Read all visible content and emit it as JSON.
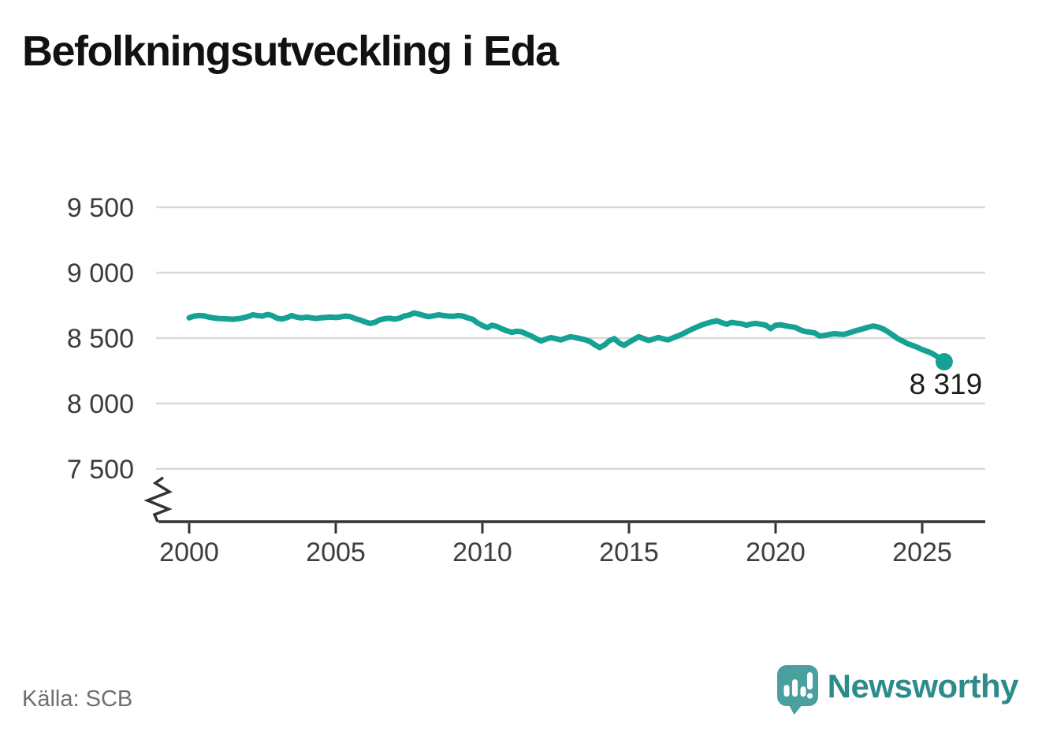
{
  "title": "Befolkningsutveckling i Eda",
  "source": "Källa: SCB",
  "branding": {
    "name": "Newsworthy",
    "icon": "newsworthy-speech-bubble-chart-icon",
    "wordmark_color": "#2d8c8a",
    "bubble_color": "#4aa09e"
  },
  "chart_data": {
    "type": "line",
    "title": "Befolkningsutveckling i Eda",
    "xlabel": "",
    "ylabel": "",
    "line_color": "#15a294",
    "grid_color": "#d9d9d9",
    "axis_color": "#333333",
    "tick_label_color": "#3d3d3d",
    "x_ticks": [
      2000,
      2005,
      2010,
      2015,
      2020,
      2025
    ],
    "y_ticks": [
      {
        "value": 9500,
        "label": "9 500"
      },
      {
        "value": 9000,
        "label": "9 000"
      },
      {
        "value": 8500,
        "label": "8 500"
      },
      {
        "value": 8000,
        "label": "8 000"
      },
      {
        "value": 7500,
        "label": "7 500"
      }
    ],
    "xlim": [
      1998.9,
      2027.2
    ],
    "ylim": [
      7500,
      9500
    ],
    "axis_break": true,
    "grid": true,
    "legend": "none",
    "end_label": "8 319",
    "end_value": 8319,
    "series": [
      {
        "name": "Befolkning i Eda",
        "points": [
          [
            2000.0,
            8655
          ],
          [
            2000.17,
            8668
          ],
          [
            2000.33,
            8672
          ],
          [
            2000.5,
            8670
          ],
          [
            2000.67,
            8660
          ],
          [
            2000.83,
            8654
          ],
          [
            2001.0,
            8650
          ],
          [
            2001.17,
            8648
          ],
          [
            2001.33,
            8646
          ],
          [
            2001.5,
            8644
          ],
          [
            2001.67,
            8648
          ],
          [
            2001.83,
            8654
          ],
          [
            2002.0,
            8664
          ],
          [
            2002.17,
            8678
          ],
          [
            2002.33,
            8672
          ],
          [
            2002.5,
            8668
          ],
          [
            2002.67,
            8680
          ],
          [
            2002.83,
            8672
          ],
          [
            2003.0,
            8652
          ],
          [
            2003.17,
            8646
          ],
          [
            2003.33,
            8656
          ],
          [
            2003.5,
            8672
          ],
          [
            2003.67,
            8660
          ],
          [
            2003.83,
            8654
          ],
          [
            2004.0,
            8660
          ],
          [
            2004.17,
            8655
          ],
          [
            2004.33,
            8650
          ],
          [
            2004.5,
            8655
          ],
          [
            2004.67,
            8658
          ],
          [
            2004.83,
            8660
          ],
          [
            2005.0,
            8657
          ],
          [
            2005.17,
            8662
          ],
          [
            2005.33,
            8668
          ],
          [
            2005.5,
            8664
          ],
          [
            2005.67,
            8648
          ],
          [
            2005.83,
            8638
          ],
          [
            2006.0,
            8624
          ],
          [
            2006.17,
            8612
          ],
          [
            2006.33,
            8620
          ],
          [
            2006.5,
            8640
          ],
          [
            2006.67,
            8648
          ],
          [
            2006.83,
            8652
          ],
          [
            2007.0,
            8645
          ],
          [
            2007.17,
            8652
          ],
          [
            2007.33,
            8668
          ],
          [
            2007.5,
            8676
          ],
          [
            2007.67,
            8692
          ],
          [
            2007.83,
            8684
          ],
          [
            2008.0,
            8672
          ],
          [
            2008.17,
            8664
          ],
          [
            2008.33,
            8670
          ],
          [
            2008.5,
            8678
          ],
          [
            2008.67,
            8672
          ],
          [
            2008.83,
            8668
          ],
          [
            2009.0,
            8666
          ],
          [
            2009.17,
            8672
          ],
          [
            2009.33,
            8668
          ],
          [
            2009.5,
            8654
          ],
          [
            2009.67,
            8644
          ],
          [
            2009.83,
            8616
          ],
          [
            2010.0,
            8596
          ],
          [
            2010.17,
            8580
          ],
          [
            2010.33,
            8598
          ],
          [
            2010.5,
            8588
          ],
          [
            2010.67,
            8570
          ],
          [
            2010.83,
            8556
          ],
          [
            2011.0,
            8544
          ],
          [
            2011.17,
            8552
          ],
          [
            2011.33,
            8548
          ],
          [
            2011.5,
            8532
          ],
          [
            2011.67,
            8516
          ],
          [
            2011.83,
            8496
          ],
          [
            2012.0,
            8478
          ],
          [
            2012.17,
            8492
          ],
          [
            2012.33,
            8503
          ],
          [
            2012.5,
            8496
          ],
          [
            2012.67,
            8486
          ],
          [
            2012.83,
            8498
          ],
          [
            2013.0,
            8510
          ],
          [
            2013.17,
            8504
          ],
          [
            2013.33,
            8496
          ],
          [
            2013.5,
            8488
          ],
          [
            2013.67,
            8474
          ],
          [
            2013.83,
            8450
          ],
          [
            2014.0,
            8428
          ],
          [
            2014.17,
            8448
          ],
          [
            2014.33,
            8480
          ],
          [
            2014.5,
            8496
          ],
          [
            2014.67,
            8462
          ],
          [
            2014.83,
            8444
          ],
          [
            2015.0,
            8468
          ],
          [
            2015.17,
            8490
          ],
          [
            2015.33,
            8510
          ],
          [
            2015.5,
            8496
          ],
          [
            2015.67,
            8482
          ],
          [
            2015.83,
            8492
          ],
          [
            2016.0,
            8504
          ],
          [
            2016.17,
            8494
          ],
          [
            2016.33,
            8486
          ],
          [
            2016.5,
            8502
          ],
          [
            2016.67,
            8516
          ],
          [
            2016.83,
            8532
          ],
          [
            2017.0,
            8552
          ],
          [
            2017.17,
            8570
          ],
          [
            2017.33,
            8586
          ],
          [
            2017.5,
            8602
          ],
          [
            2017.67,
            8614
          ],
          [
            2017.83,
            8624
          ],
          [
            2018.0,
            8632
          ],
          [
            2018.17,
            8618
          ],
          [
            2018.33,
            8606
          ],
          [
            2018.5,
            8620
          ],
          [
            2018.67,
            8614
          ],
          [
            2018.83,
            8610
          ],
          [
            2019.0,
            8598
          ],
          [
            2019.17,
            8608
          ],
          [
            2019.33,
            8612
          ],
          [
            2019.5,
            8606
          ],
          [
            2019.67,
            8598
          ],
          [
            2019.83,
            8572
          ],
          [
            2020.0,
            8598
          ],
          [
            2020.17,
            8602
          ],
          [
            2020.33,
            8594
          ],
          [
            2020.5,
            8588
          ],
          [
            2020.67,
            8582
          ],
          [
            2020.83,
            8564
          ],
          [
            2021.0,
            8550
          ],
          [
            2021.17,
            8546
          ],
          [
            2021.33,
            8540
          ],
          [
            2021.5,
            8516
          ],
          [
            2021.67,
            8520
          ],
          [
            2021.83,
            8528
          ],
          [
            2022.0,
            8534
          ],
          [
            2022.17,
            8530
          ],
          [
            2022.33,
            8528
          ],
          [
            2022.5,
            8540
          ],
          [
            2022.67,
            8552
          ],
          [
            2022.83,
            8562
          ],
          [
            2023.0,
            8572
          ],
          [
            2023.17,
            8584
          ],
          [
            2023.33,
            8592
          ],
          [
            2023.5,
            8584
          ],
          [
            2023.67,
            8570
          ],
          [
            2023.83,
            8548
          ],
          [
            2024.0,
            8522
          ],
          [
            2024.17,
            8496
          ],
          [
            2024.33,
            8478
          ],
          [
            2024.5,
            8458
          ],
          [
            2024.67,
            8444
          ],
          [
            2024.83,
            8430
          ],
          [
            2025.0,
            8412
          ],
          [
            2025.17,
            8398
          ],
          [
            2025.33,
            8384
          ],
          [
            2025.5,
            8360
          ],
          [
            2025.67,
            8334
          ],
          [
            2025.75,
            8319
          ]
        ]
      }
    ]
  }
}
